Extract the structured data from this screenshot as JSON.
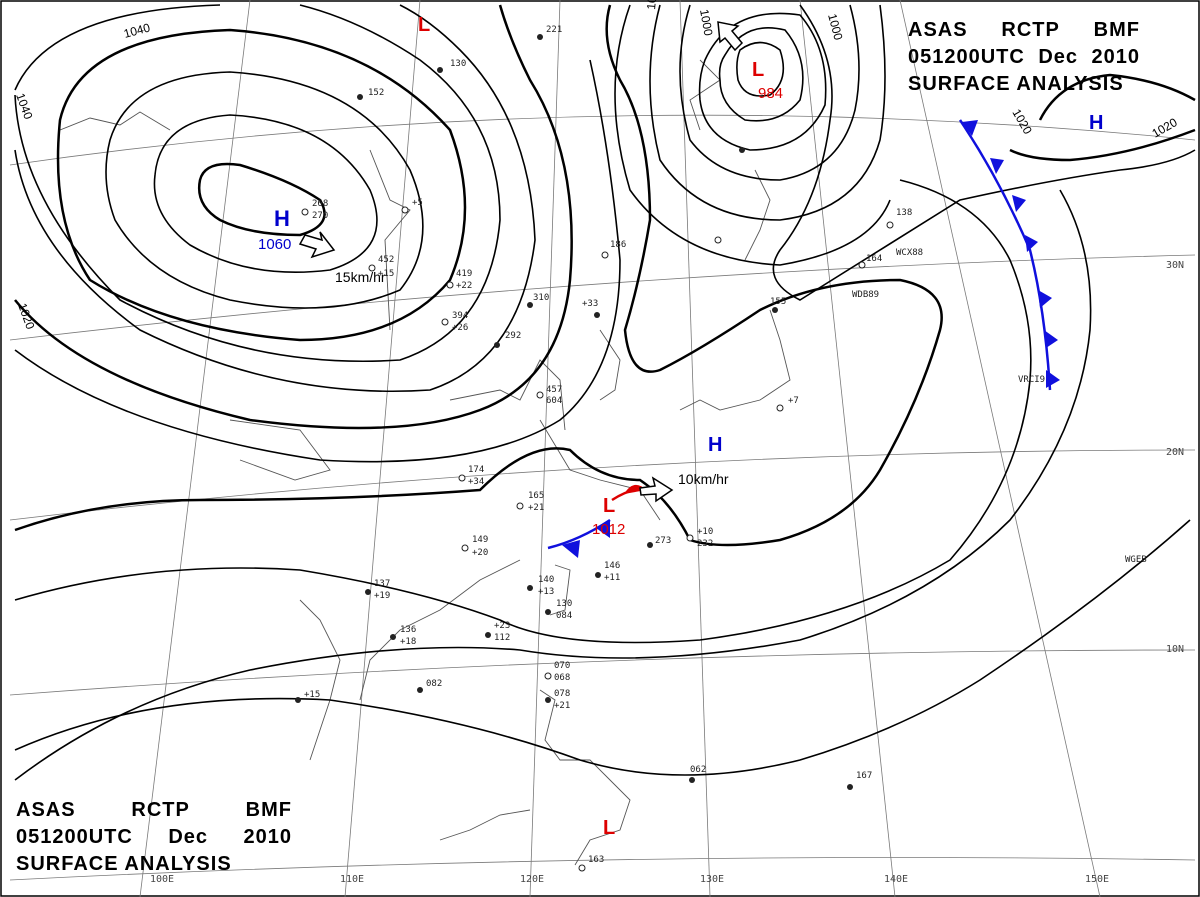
{
  "header": {
    "agency_line": [
      "ASAS",
      "RCTP",
      "BMF"
    ],
    "time_line": [
      "051200UTC",
      "Dec",
      "2010"
    ],
    "title_line": "SURFACE ANALYSIS"
  },
  "pressure_centers": [
    {
      "type": "H",
      "value": "1060",
      "motion": "15km/hr",
      "color": "#0000cc"
    },
    {
      "type": "L",
      "value": "984",
      "motion": "",
      "color": "#dd0000"
    },
    {
      "type": "L",
      "value": "1012",
      "motion": "10km/hr",
      "color": "#dd0000"
    },
    {
      "type": "H",
      "value": "",
      "motion": "",
      "color": "#0000cc"
    },
    {
      "type": "H",
      "value": "",
      "motion": "",
      "color": "#0000cc"
    },
    {
      "type": "L",
      "value": "",
      "motion": "",
      "color": "#dd0000"
    },
    {
      "type": "L",
      "value": "",
      "motion": "",
      "color": "#dd0000"
    }
  ],
  "isobar_labels": [
    "1040",
    "1040",
    "1020",
    "1020",
    "1000",
    "1000",
    "1020",
    "1020"
  ],
  "longitude_labels": [
    "100E",
    "110E",
    "120E",
    "130E",
    "140E",
    "150E"
  ],
  "latitude_labels": [
    "30N",
    "20N",
    "10N"
  ],
  "ship_codes": [
    "WCX88",
    "WDB89",
    "VRCI9",
    "WGEB"
  ],
  "station_samples": [
    "452",
    "+15",
    "419",
    "+22",
    "394",
    "+26",
    "310",
    "292",
    "174",
    "+34",
    "165",
    "+21",
    "149",
    "+20",
    "146",
    "+11",
    "140",
    "+13",
    "137",
    "+19",
    "136",
    "+18",
    "130",
    "+23",
    "112",
    "084",
    "082",
    "+15",
    "078",
    "+21",
    "070",
    "068",
    "062",
    "167",
    "163",
    "+7",
    "+10",
    "232",
    "273",
    "186",
    "+33",
    "457",
    "604",
    "+5",
    "268",
    "270",
    "221",
    "130",
    "152",
    "138",
    "164",
    "155"
  ],
  "colors": {
    "high": "#0000cc",
    "low": "#dd0000",
    "cold_front": "#1010dd",
    "warm_front": "#dd0000",
    "isobar": "#000000",
    "grid": "#7a7a7a"
  }
}
